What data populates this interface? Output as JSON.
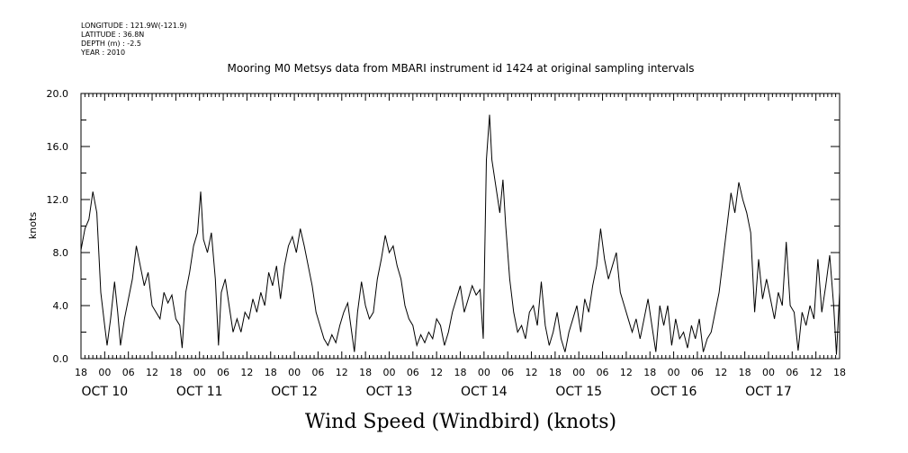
{
  "header": {
    "longitude": "LONGITUDE : 121.9W(-121.9)",
    "latitude": "LATITUDE : 36.8N",
    "depth": "DEPTH (m) : -2.5",
    "year": "YEAR : 2010"
  },
  "chart_data": {
    "type": "line",
    "title": "Mooring M0 Metsys data from MBARI instrument id 1424 at original sampling intervals",
    "caption": "Wind Speed (Windbird) (knots)",
    "ylabel": "knots",
    "xlabel": "",
    "ylim": [
      0,
      20
    ],
    "xlim_hours": [
      -6,
      186
    ],
    "x_unit": "hours since OCT 10 00:00 2010",
    "y_ticks": [
      "0.0",
      "4.0",
      "8.0",
      "12.0",
      "16.0",
      "20.0"
    ],
    "x_tick_labels": [
      "18",
      "00",
      "06",
      "12",
      "18",
      "00",
      "06",
      "12",
      "18",
      "00",
      "06",
      "12",
      "18",
      "00",
      "06",
      "12",
      "18",
      "00",
      "06",
      "12",
      "18",
      "00",
      "06",
      "12",
      "18",
      "00",
      "06",
      "12",
      "18",
      "00",
      "06",
      "12",
      "18"
    ],
    "day_labels": [
      {
        "label": "OCT 10",
        "hour": 0
      },
      {
        "label": "OCT 11",
        "hour": 24
      },
      {
        "label": "OCT 12",
        "hour": 48
      },
      {
        "label": "OCT 13",
        "hour": 72
      },
      {
        "label": "OCT 14",
        "hour": 96
      },
      {
        "label": "OCT 15",
        "hour": 120
      },
      {
        "label": "OCT 16",
        "hour": 144
      },
      {
        "label": "OCT 17",
        "hour": 168
      }
    ],
    "grid": false,
    "legend": "none",
    "series": [
      {
        "color": "#000000",
        "points": [
          [
            -6,
            8.2
          ],
          [
            -5,
            9.8
          ],
          [
            -4,
            10.5
          ],
          [
            -3,
            12.6
          ],
          [
            -2,
            11.0
          ],
          [
            -1,
            5.0
          ],
          [
            0,
            2.5
          ],
          [
            0.6,
            1.0
          ],
          [
            1.5,
            3.0
          ],
          [
            2.5,
            5.8
          ],
          [
            3.3,
            3.5
          ],
          [
            4,
            1.0
          ],
          [
            5,
            3.0
          ],
          [
            6,
            4.5
          ],
          [
            7,
            6.0
          ],
          [
            8,
            8.5
          ],
          [
            9,
            7.0
          ],
          [
            10,
            5.5
          ],
          [
            11,
            6.5
          ],
          [
            12,
            4.0
          ],
          [
            13,
            3.5
          ],
          [
            14,
            3.0
          ],
          [
            15,
            5.0
          ],
          [
            16,
            4.2
          ],
          [
            17,
            4.8
          ],
          [
            18,
            3.0
          ],
          [
            19,
            2.5
          ],
          [
            19.6,
            0.8
          ],
          [
            20.5,
            5.0
          ],
          [
            21.5,
            6.5
          ],
          [
            22.5,
            8.5
          ],
          [
            23.5,
            9.5
          ],
          [
            24.3,
            12.6
          ],
          [
            25,
            9.0
          ],
          [
            26,
            8.0
          ],
          [
            27,
            9.5
          ],
          [
            28,
            6.0
          ],
          [
            28.8,
            1.0
          ],
          [
            29.5,
            5.0
          ],
          [
            30.5,
            6.0
          ],
          [
            31.5,
            4.0
          ],
          [
            32.5,
            2.0
          ],
          [
            33.5,
            3.0
          ],
          [
            34.5,
            2.0
          ],
          [
            35.5,
            3.5
          ],
          [
            36.5,
            3.0
          ],
          [
            37.5,
            4.5
          ],
          [
            38.5,
            3.5
          ],
          [
            39.5,
            5.0
          ],
          [
            40.5,
            4.0
          ],
          [
            41.5,
            6.5
          ],
          [
            42.5,
            5.5
          ],
          [
            43.5,
            7.0
          ],
          [
            44.5,
            4.5
          ],
          [
            45.5,
            7.0
          ],
          [
            46.5,
            8.5
          ],
          [
            47.5,
            9.2
          ],
          [
            48.5,
            8.0
          ],
          [
            49.5,
            9.8
          ],
          [
            50.5,
            8.5
          ],
          [
            51.5,
            7.0
          ],
          [
            52.5,
            5.5
          ],
          [
            53.5,
            3.5
          ],
          [
            54.5,
            2.5
          ],
          [
            55.5,
            1.5
          ],
          [
            56.5,
            1.0
          ],
          [
            57.5,
            1.8
          ],
          [
            58.5,
            1.2
          ],
          [
            59.5,
            2.5
          ],
          [
            60.5,
            3.5
          ],
          [
            61.5,
            4.2
          ],
          [
            62.5,
            2.0
          ],
          [
            63.2,
            0.5
          ],
          [
            64,
            3.5
          ],
          [
            65,
            5.8
          ],
          [
            66,
            4.0
          ],
          [
            67,
            3.0
          ],
          [
            68,
            3.5
          ],
          [
            69,
            6.0
          ],
          [
            70,
            7.5
          ],
          [
            71,
            9.3
          ],
          [
            72,
            8.0
          ],
          [
            73,
            8.5
          ],
          [
            74,
            7.0
          ],
          [
            75,
            6.0
          ],
          [
            76,
            4.0
          ],
          [
            77,
            3.0
          ],
          [
            78,
            2.5
          ],
          [
            79,
            1.0
          ],
          [
            80,
            1.8
          ],
          [
            81,
            1.2
          ],
          [
            82,
            2.0
          ],
          [
            83,
            1.5
          ],
          [
            84,
            3.0
          ],
          [
            85,
            2.5
          ],
          [
            86,
            1.0
          ],
          [
            87,
            2.0
          ],
          [
            88,
            3.5
          ],
          [
            89,
            4.5
          ],
          [
            90,
            5.5
          ],
          [
            91,
            3.5
          ],
          [
            92,
            4.5
          ],
          [
            93,
            5.5
          ],
          [
            94,
            4.8
          ],
          [
            95,
            5.2
          ],
          [
            95.8,
            1.5
          ],
          [
            96.6,
            15.0
          ],
          [
            97.4,
            18.4
          ],
          [
            98,
            15.0
          ],
          [
            99,
            13.0
          ],
          [
            100,
            11.0
          ],
          [
            100.8,
            13.5
          ],
          [
            101.5,
            10.0
          ],
          [
            102.5,
            6.0
          ],
          [
            103.5,
            3.5
          ],
          [
            104.5,
            2.0
          ],
          [
            105.5,
            2.5
          ],
          [
            106.5,
            1.5
          ],
          [
            107.5,
            3.5
          ],
          [
            108.5,
            4.0
          ],
          [
            109.5,
            2.5
          ],
          [
            110.5,
            5.8
          ],
          [
            111.5,
            2.5
          ],
          [
            112.5,
            1.0
          ],
          [
            113.5,
            2.0
          ],
          [
            114.5,
            3.5
          ],
          [
            115.5,
            1.5
          ],
          [
            116.5,
            0.5
          ],
          [
            117.5,
            2.0
          ],
          [
            118.5,
            3.0
          ],
          [
            119.5,
            4.0
          ],
          [
            120.5,
            2.0
          ],
          [
            121.5,
            4.5
          ],
          [
            122.5,
            3.5
          ],
          [
            123.5,
            5.5
          ],
          [
            124.5,
            7.0
          ],
          [
            125.5,
            9.8
          ],
          [
            126.5,
            7.5
          ],
          [
            127.5,
            6.0
          ],
          [
            128.5,
            7.0
          ],
          [
            129.5,
            8.0
          ],
          [
            130.5,
            5.0
          ],
          [
            131.5,
            4.0
          ],
          [
            132.5,
            3.0
          ],
          [
            133.5,
            2.0
          ],
          [
            134.5,
            3.0
          ],
          [
            135.5,
            1.5
          ],
          [
            136.5,
            3.0
          ],
          [
            137.5,
            4.5
          ],
          [
            138.5,
            2.5
          ],
          [
            139.5,
            0.5
          ],
          [
            140.5,
            4.0
          ],
          [
            141.5,
            2.5
          ],
          [
            142.5,
            4.0
          ],
          [
            143.5,
            1.0
          ],
          [
            144.5,
            3.0
          ],
          [
            145.5,
            1.5
          ],
          [
            146.5,
            2.0
          ],
          [
            147.5,
            0.8
          ],
          [
            148.5,
            2.5
          ],
          [
            149.5,
            1.5
          ],
          [
            150.5,
            3.0
          ],
          [
            151.5,
            0.5
          ],
          [
            152.5,
            1.5
          ],
          [
            153.5,
            2.0
          ],
          [
            154.5,
            3.5
          ],
          [
            155.5,
            5.0
          ],
          [
            156.5,
            7.5
          ],
          [
            157.5,
            10.0
          ],
          [
            158.5,
            12.5
          ],
          [
            159.5,
            11.0
          ],
          [
            160.5,
            13.3
          ],
          [
            161.5,
            12.0
          ],
          [
            162.5,
            11.0
          ],
          [
            163.5,
            9.5
          ],
          [
            164.5,
            3.5
          ],
          [
            165.5,
            7.5
          ],
          [
            166.5,
            4.5
          ],
          [
            167.5,
            6.0
          ],
          [
            168.5,
            4.5
          ],
          [
            169.5,
            3.0
          ],
          [
            170.5,
            5.0
          ],
          [
            171.5,
            4.0
          ],
          [
            172.5,
            8.8
          ],
          [
            173.5,
            4.0
          ],
          [
            174.5,
            3.5
          ],
          [
            175.5,
            0.6
          ],
          [
            176.5,
            3.5
          ],
          [
            177.5,
            2.5
          ],
          [
            178.5,
            4.0
          ],
          [
            179.5,
            3.0
          ],
          [
            180.5,
            7.5
          ],
          [
            181.5,
            3.5
          ],
          [
            182.5,
            5.5
          ],
          [
            183.5,
            7.8
          ],
          [
            184.5,
            4.0
          ],
          [
            185.2,
            0.3
          ],
          [
            186,
            5.0
          ]
        ]
      }
    ]
  }
}
